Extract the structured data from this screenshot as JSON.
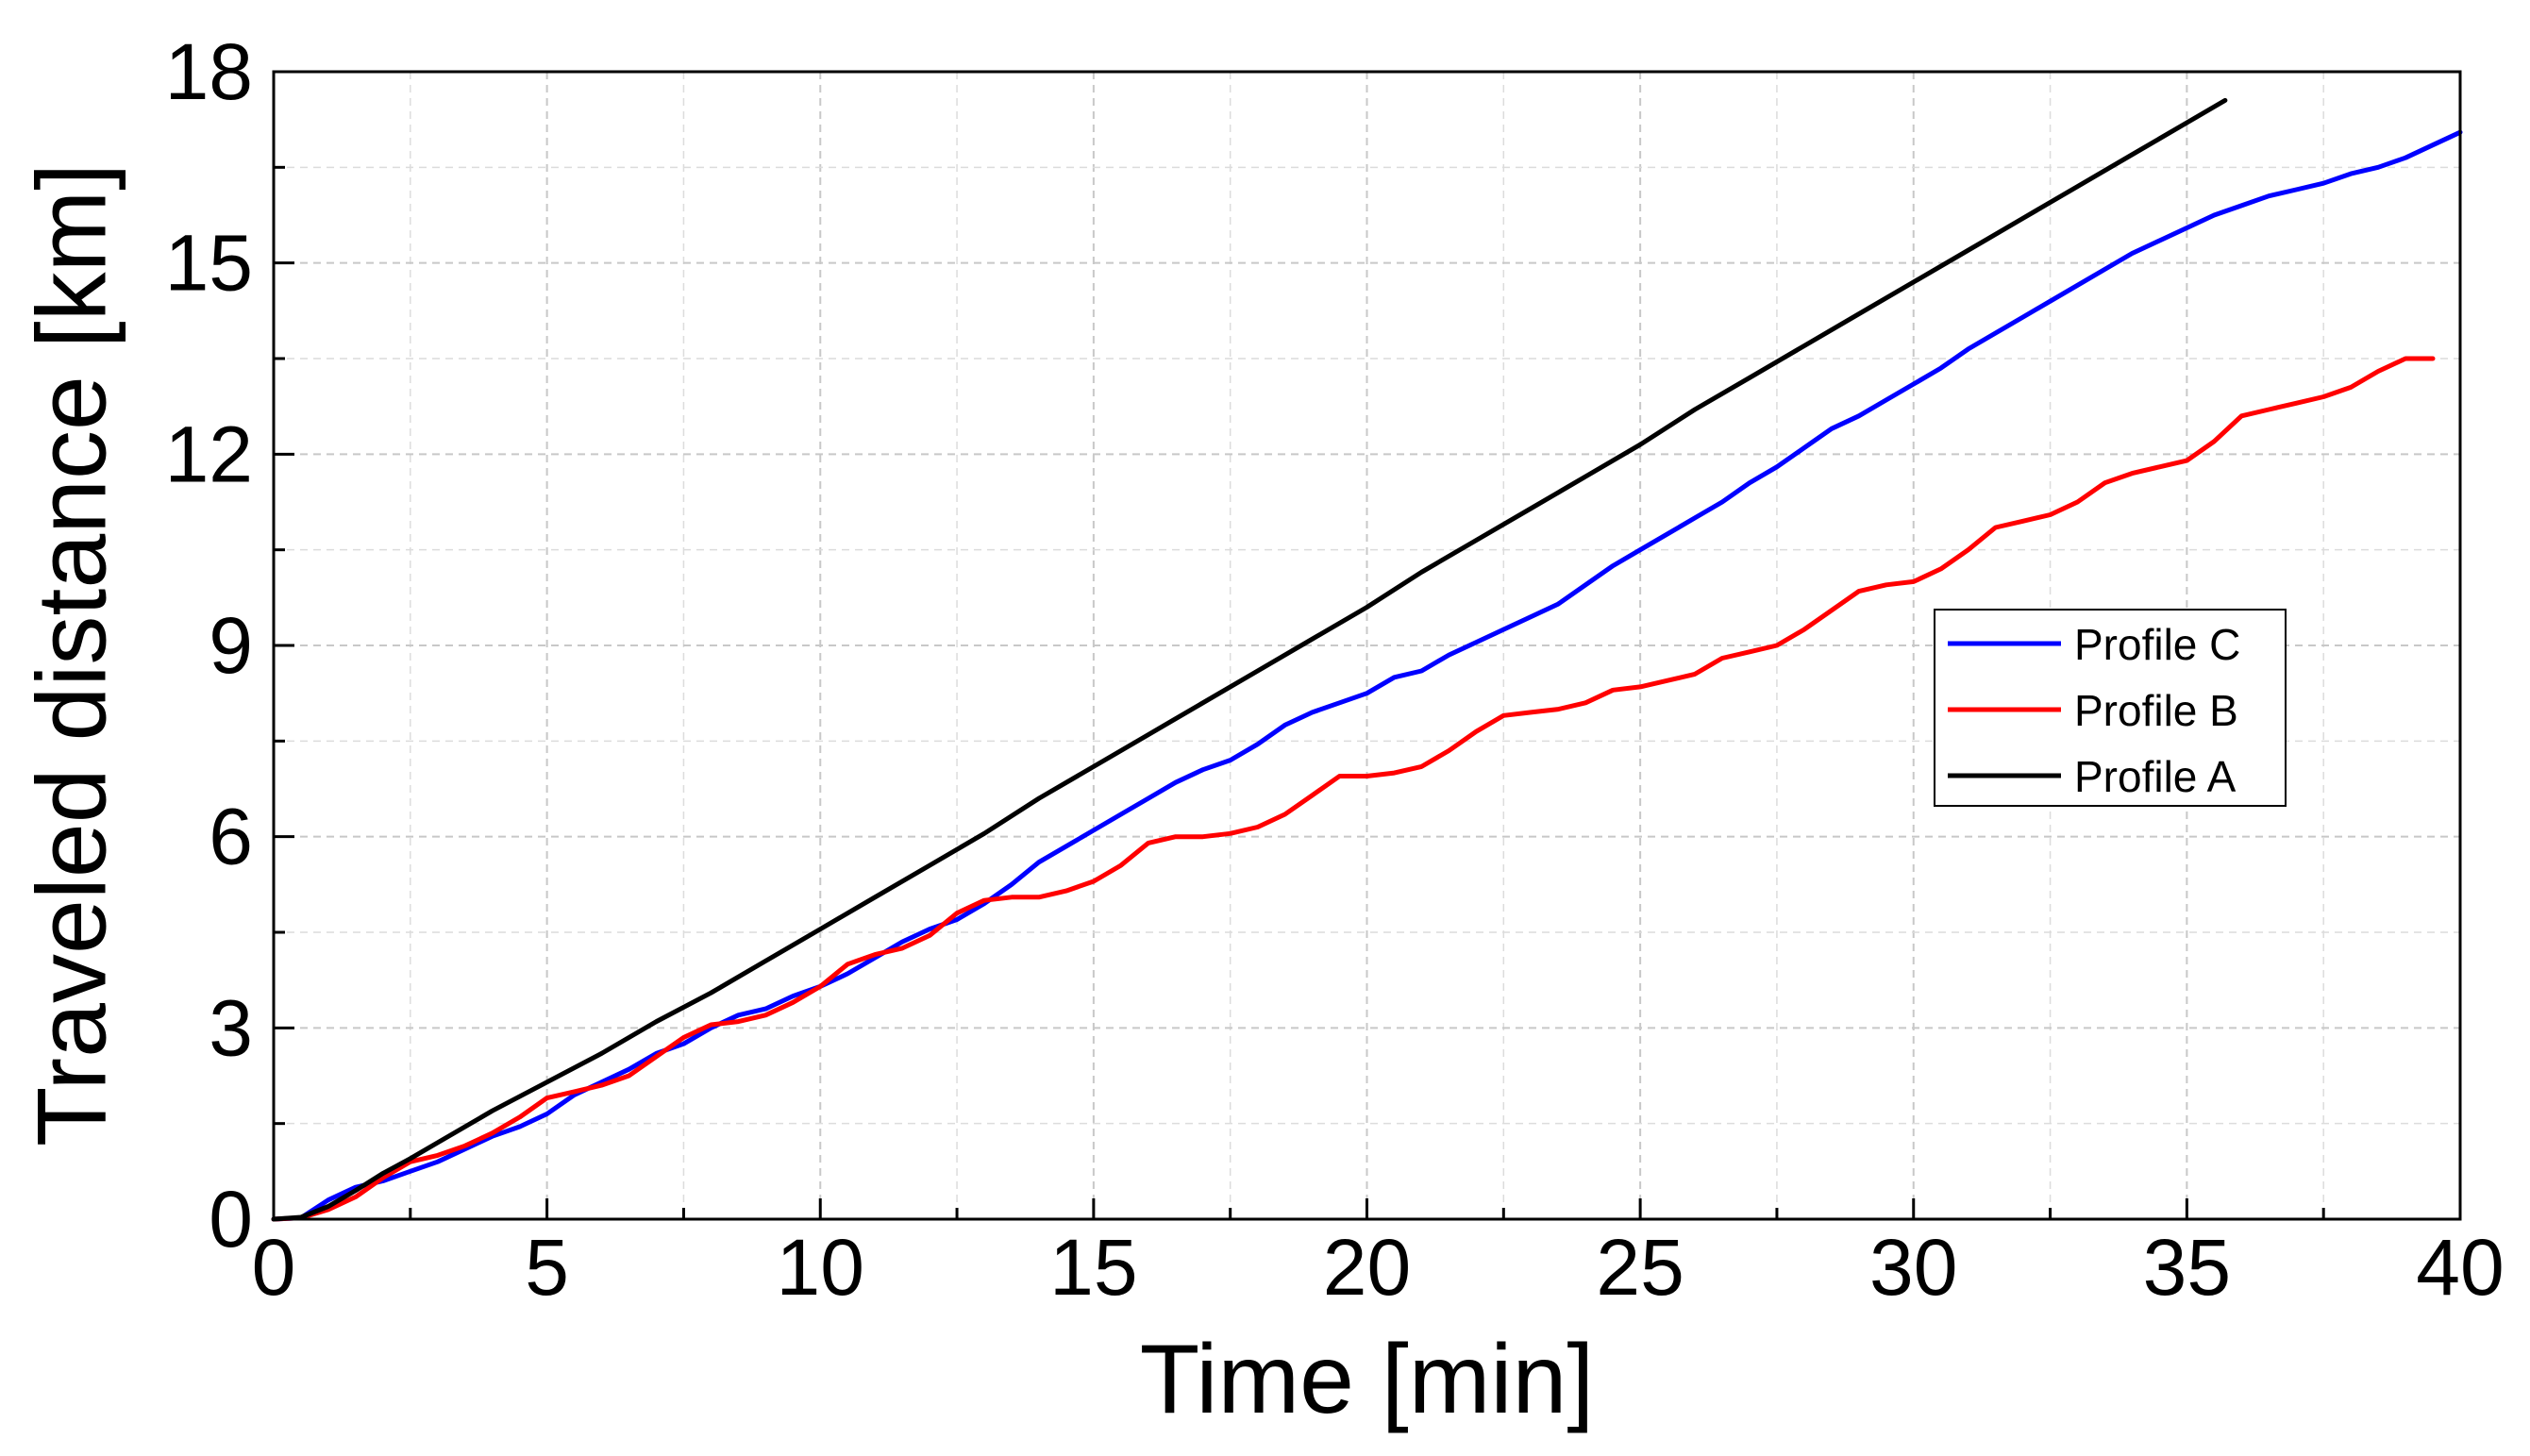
{
  "chart_data": {
    "type": "line",
    "xlabel": "Time [min]",
    "ylabel": "Traveled distance [km]",
    "xlim": [
      0,
      40
    ],
    "ylim": [
      0,
      18
    ],
    "xticks": [
      "0",
      "5",
      "10",
      "15",
      "20",
      "25",
      "30",
      "35",
      "40"
    ],
    "yticks": [
      "0",
      "3",
      "6",
      "9",
      "12",
      "15",
      "18"
    ],
    "grid": true,
    "legend_position": "center-right",
    "series": [
      {
        "name": "Profile C",
        "color": "#0000ff",
        "x": [
          0,
          0.5,
          1,
          1.5,
          2,
          2.5,
          3,
          3.5,
          4,
          4.5,
          5,
          5.5,
          6,
          6.5,
          7,
          7.5,
          8,
          8.5,
          9,
          9.5,
          10,
          10.5,
          11,
          11.5,
          12,
          12.5,
          13,
          13.5,
          14,
          14.5,
          15,
          15.5,
          16,
          16.5,
          17,
          17.5,
          18,
          18.5,
          19,
          19.5,
          20,
          20.5,
          21,
          21.5,
          22,
          22.5,
          23,
          23.5,
          24,
          24.5,
          25,
          25.5,
          26,
          26.5,
          27,
          27.5,
          28,
          28.5,
          29,
          29.5,
          30,
          30.5,
          31,
          31.5,
          32,
          32.5,
          33,
          33.5,
          34,
          34.5,
          35,
          35.5,
          36,
          36.5,
          37,
          37.5,
          38,
          38.5,
          39,
          39.5,
          40
        ],
        "y": [
          0,
          0.02,
          0.3,
          0.5,
          0.6,
          0.75,
          0.9,
          1.1,
          1.3,
          1.45,
          1.65,
          1.95,
          2.15,
          2.35,
          2.6,
          2.75,
          3.0,
          3.2,
          3.3,
          3.5,
          3.65,
          3.85,
          4.1,
          4.35,
          4.55,
          4.7,
          4.95,
          5.25,
          5.6,
          5.85,
          6.1,
          6.35,
          6.6,
          6.85,
          7.05,
          7.2,
          7.45,
          7.75,
          7.95,
          8.1,
          8.25,
          8.5,
          8.6,
          8.85,
          9.05,
          9.25,
          9.45,
          9.65,
          9.95,
          10.25,
          10.5,
          10.75,
          11.0,
          11.25,
          11.55,
          11.8,
          12.1,
          12.4,
          12.6,
          12.85,
          13.1,
          13.35,
          13.65,
          13.9,
          14.15,
          14.4,
          14.65,
          14.9,
          15.15,
          15.35,
          15.55,
          15.75,
          15.9,
          16.05,
          16.15,
          16.25,
          16.4,
          16.5,
          16.65,
          16.85,
          17.05
        ]
      },
      {
        "name": "Profile B",
        "color": "#ff0000",
        "x": [
          0,
          0.5,
          1,
          1.5,
          2,
          2.5,
          3,
          3.5,
          4,
          4.5,
          5,
          5.5,
          6,
          6.5,
          7,
          7.5,
          8,
          8.5,
          9,
          9.5,
          10,
          10.5,
          11,
          11.5,
          12,
          12.5,
          13,
          13.5,
          14,
          14.5,
          15,
          15.5,
          16,
          16.5,
          17,
          17.5,
          18,
          18.5,
          19,
          19.5,
          20,
          20.5,
          21,
          21.5,
          22,
          22.5,
          23,
          23.5,
          24,
          24.5,
          25,
          25.5,
          26,
          26.5,
          27,
          27.5,
          28,
          28.5,
          29,
          29.5,
          30,
          30.5,
          31,
          31.5,
          32,
          32.5,
          33,
          33.5,
          34,
          34.5,
          35,
          35.5,
          36,
          36.5,
          37,
          37.5,
          38,
          38.5,
          39,
          39.5
        ],
        "y": [
          0,
          0.02,
          0.15,
          0.35,
          0.65,
          0.9,
          1.0,
          1.15,
          1.35,
          1.6,
          1.9,
          2.0,
          2.1,
          2.25,
          2.55,
          2.85,
          3.05,
          3.1,
          3.2,
          3.4,
          3.65,
          4.0,
          4.15,
          4.25,
          4.45,
          4.8,
          5.0,
          5.05,
          5.05,
          5.15,
          5.3,
          5.55,
          5.9,
          6.0,
          6.0,
          6.05,
          6.15,
          6.35,
          6.65,
          6.95,
          6.95,
          7.0,
          7.1,
          7.35,
          7.65,
          7.9,
          7.95,
          8.0,
          8.1,
          8.3,
          8.35,
          8.45,
          8.55,
          8.8,
          8.9,
          9.0,
          9.25,
          9.55,
          9.85,
          9.95,
          10.0,
          10.2,
          10.5,
          10.85,
          10.95,
          11.05,
          11.25,
          11.55,
          11.7,
          11.8,
          11.9,
          12.2,
          12.6,
          12.7,
          12.8,
          12.9,
          13.05,
          13.3,
          13.5,
          13.5
        ]
      },
      {
        "name": "Profile A",
        "color": "#000000",
        "x": [
          0,
          0.5,
          1,
          1.5,
          2,
          2.5,
          3,
          4,
          5,
          6,
          7,
          8,
          9,
          10,
          11,
          12,
          13,
          14,
          15,
          16,
          17,
          18,
          19,
          20,
          21,
          22,
          23,
          24,
          25,
          26,
          27,
          28,
          29,
          30,
          31,
          32,
          33,
          34,
          35,
          35.7
        ],
        "y": [
          0,
          0.03,
          0.2,
          0.45,
          0.72,
          0.95,
          1.2,
          1.7,
          2.15,
          2.6,
          3.1,
          3.55,
          4.05,
          4.55,
          5.05,
          5.55,
          6.05,
          6.6,
          7.1,
          7.6,
          8.1,
          8.6,
          9.1,
          9.6,
          10.15,
          10.65,
          11.15,
          11.65,
          12.15,
          12.7,
          13.2,
          13.7,
          14.2,
          14.7,
          15.2,
          15.7,
          16.2,
          16.7,
          17.2,
          17.55
        ]
      }
    ]
  }
}
